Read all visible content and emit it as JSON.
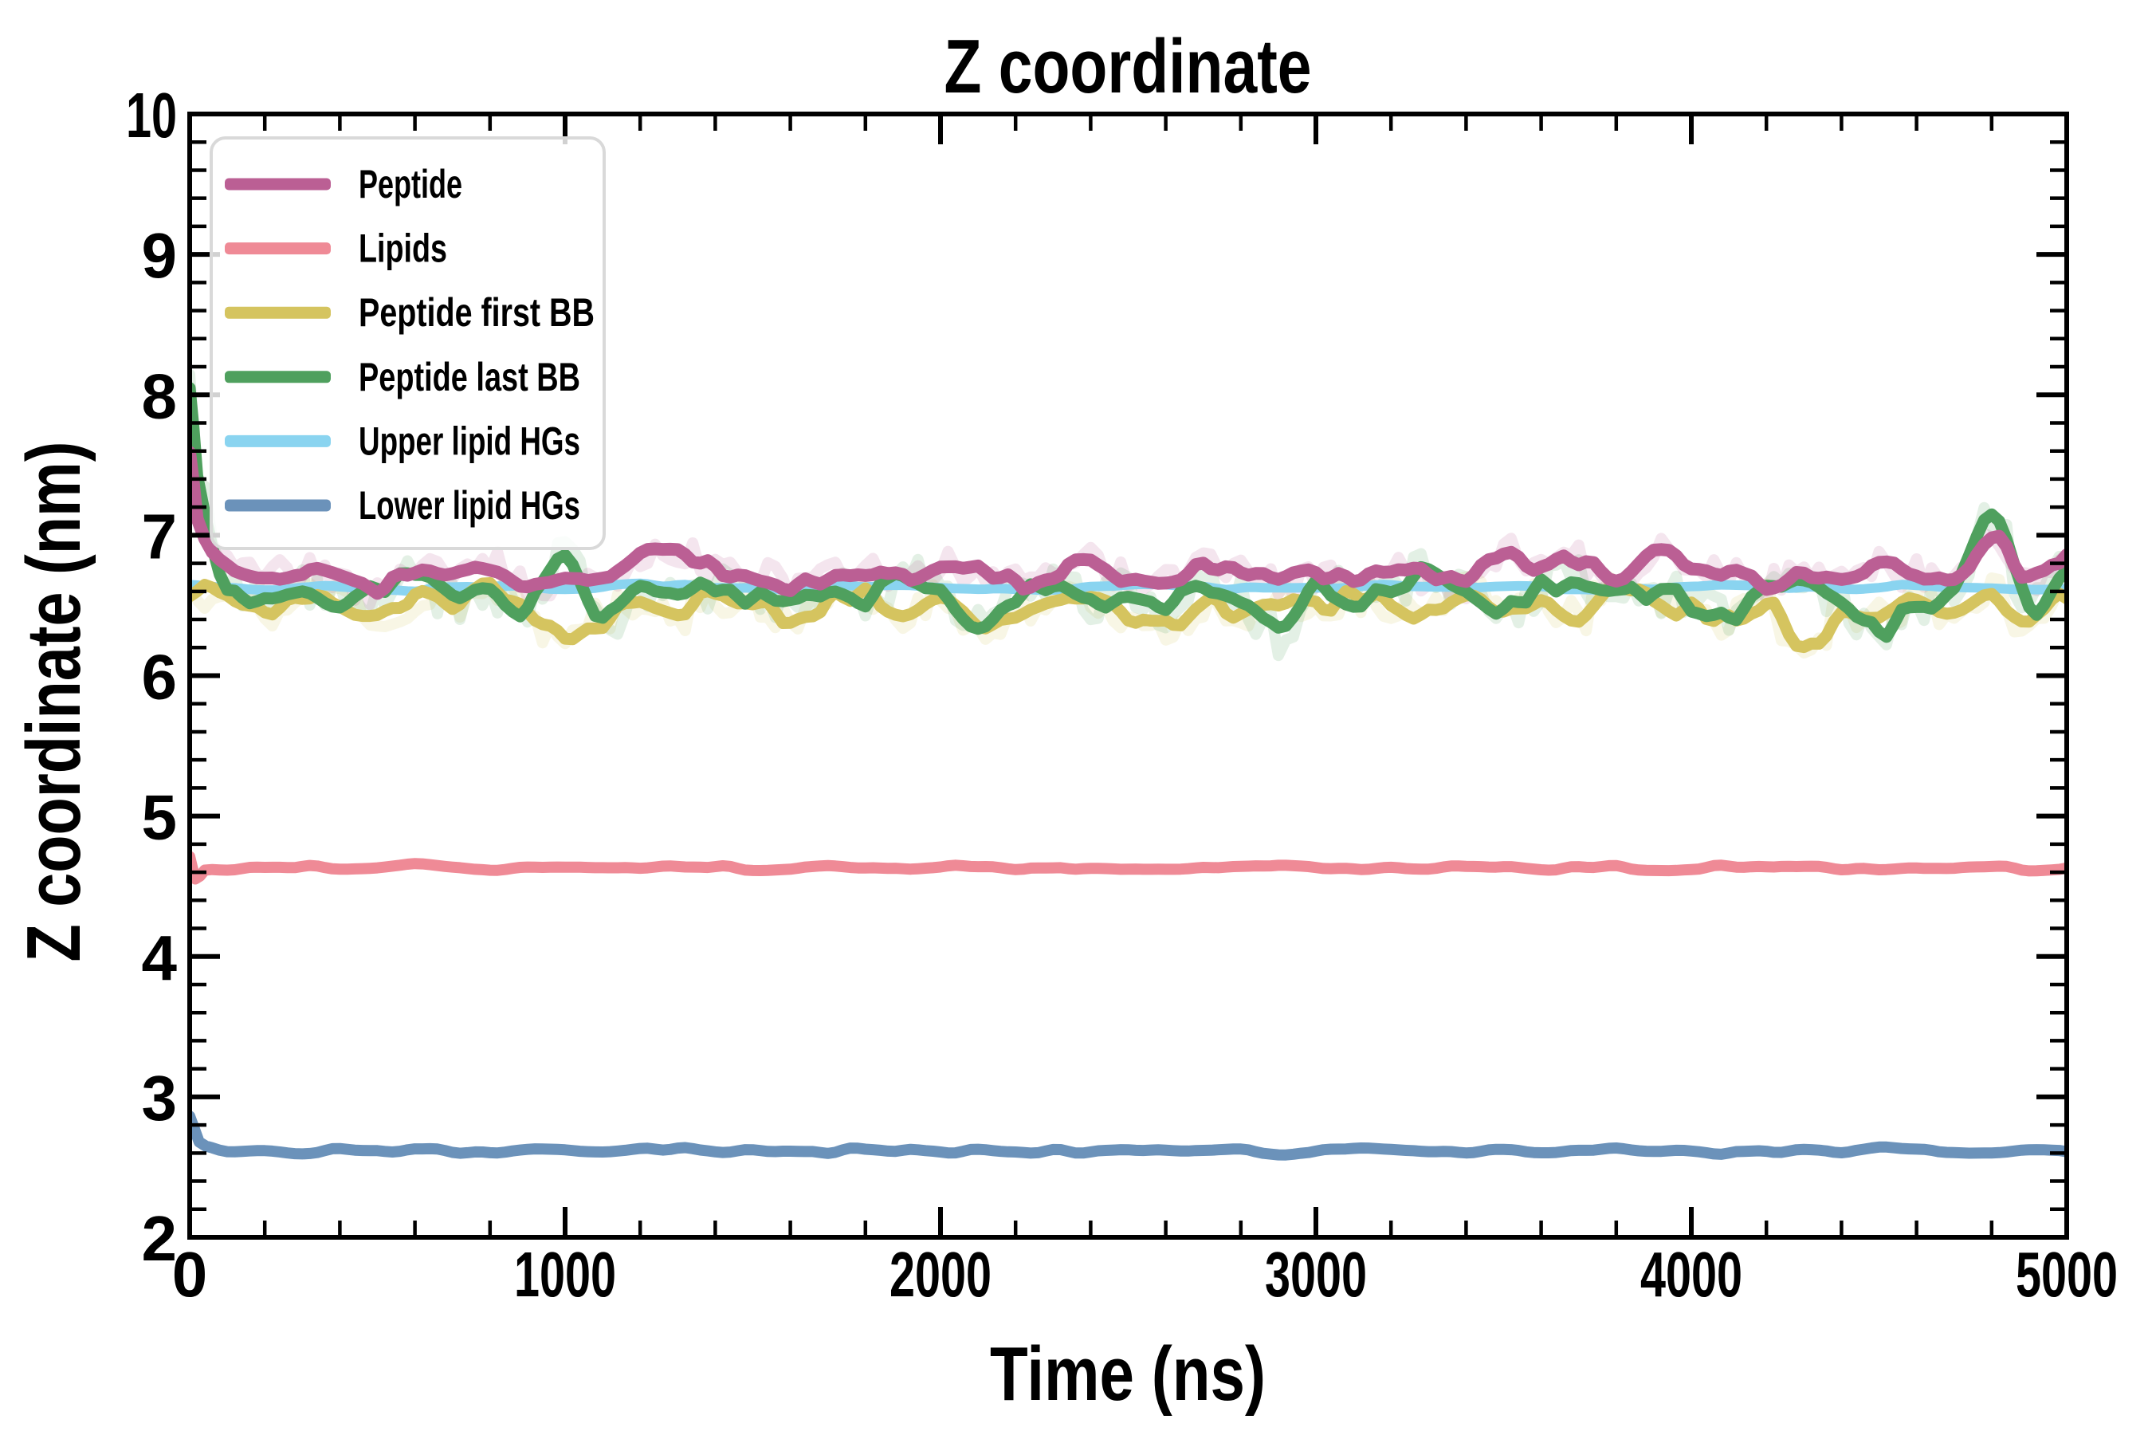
{
  "figure": {
    "background": "#ffffff",
    "title": "Z coordinate",
    "xlabel": "Time (ns)",
    "ylabel": "Z coordinate (nm)"
  },
  "legend": {
    "entries": [
      {
        "label": "Peptide",
        "color": "#bb5f94"
      },
      {
        "label": "Lipids",
        "color": "#ef8a96"
      },
      {
        "label": "Peptide first BB",
        "color": "#d5c45f"
      },
      {
        "label": "Peptide last BB",
        "color": "#4fa05e"
      },
      {
        "label": "Upper lipid HGs",
        "color": "#8ad4f0"
      },
      {
        "label": "Lower lipid HGs",
        "color": "#6b92ba"
      }
    ]
  },
  "chart_data": {
    "type": "line",
    "title": "Z coordinate",
    "xlabel": "Time (ns)",
    "ylabel": "Z coordinate (nm)",
    "xlim": [
      0,
      5000
    ],
    "ylim": [
      2,
      10
    ],
    "grid": false,
    "legend_position": "upper-left",
    "axis_color": "#000000",
    "ticks": {
      "x_major": [
        0,
        1000,
        2000,
        3000,
        4000,
        5000
      ],
      "x_major_labels": [
        "0",
        "1000",
        "2000",
        "3000",
        "4000",
        "5000"
      ],
      "x_minor_step": 200,
      "y_major": [
        2,
        3,
        4,
        5,
        6,
        7,
        8,
        9,
        10
      ],
      "y_major_labels": [
        "2",
        "3",
        "4",
        "5",
        "6",
        "7",
        "8",
        "9",
        "10"
      ],
      "y_minor_step": 0.2
    },
    "z_order": [
      "upper_hgs",
      "first_bb",
      "last_bb",
      "peptide",
      "lipids",
      "lower_hgs"
    ],
    "ghosts": [
      "first_bb",
      "last_bb",
      "peptide"
    ],
    "series": [
      {
        "id": "peptide",
        "name": "Peptide",
        "color": "#bb5f94",
        "width": 16,
        "jitter": {
          "amp": 0.055,
          "lambda": 42,
          "seed": 3
        },
        "x": [
          0,
          20,
          60,
          100,
          200,
          300,
          400,
          500,
          600,
          700,
          800,
          900,
          1000,
          1100,
          1200,
          1300,
          1400,
          1500,
          1600,
          1700,
          1800,
          1900,
          2000,
          2100,
          2200,
          2300,
          2400,
          2500,
          2600,
          2700,
          2800,
          2900,
          3000,
          3100,
          3200,
          3300,
          3400,
          3500,
          3600,
          3700,
          3800,
          3900,
          4000,
          4100,
          4200,
          4300,
          4400,
          4500,
          4600,
          4700,
          4800,
          4900,
          5000
        ],
        "y": [
          7.55,
          7.08,
          6.85,
          6.78,
          6.7,
          6.75,
          6.68,
          6.62,
          6.74,
          6.7,
          6.78,
          6.66,
          6.71,
          6.65,
          6.88,
          6.9,
          6.77,
          6.72,
          6.64,
          6.7,
          6.76,
          6.68,
          6.82,
          6.74,
          6.66,
          6.72,
          6.79,
          6.7,
          6.63,
          6.76,
          6.72,
          6.67,
          6.74,
          6.7,
          6.78,
          6.71,
          6.66,
          6.88,
          6.76,
          6.83,
          6.7,
          6.9,
          6.78,
          6.72,
          6.66,
          6.74,
          6.7,
          6.78,
          6.72,
          6.65,
          7.02,
          6.7,
          6.86
        ]
      },
      {
        "id": "lipids",
        "name": "Lipids",
        "color": "#ef8a96",
        "width": 14,
        "jitter": {
          "amp": 0.013,
          "lambda": 55,
          "seed": 11
        },
        "x": [
          0,
          15,
          40,
          100,
          200,
          300,
          400,
          500,
          600,
          700,
          800,
          900,
          1000,
          1100,
          1200,
          1300,
          1400,
          1500,
          1600,
          1700,
          1800,
          1900,
          2000,
          2100,
          2200,
          2300,
          2400,
          2500,
          2600,
          2700,
          2800,
          2900,
          3000,
          3100,
          3200,
          3300,
          3400,
          3500,
          3600,
          3700,
          3800,
          3900,
          4000,
          4100,
          4200,
          4300,
          4400,
          4500,
          4600,
          4700,
          4800,
          4900,
          5000
        ],
        "y": [
          4.72,
          4.56,
          4.62,
          4.62,
          4.63,
          4.64,
          4.62,
          4.63,
          4.65,
          4.63,
          4.62,
          4.64,
          4.63,
          4.62,
          4.63,
          4.65,
          4.64,
          4.62,
          4.63,
          4.64,
          4.62,
          4.63,
          4.64,
          4.65,
          4.63,
          4.62,
          4.64,
          4.63,
          4.62,
          4.63,
          4.65,
          4.64,
          4.63,
          4.62,
          4.64,
          4.63,
          4.65,
          4.64,
          4.62,
          4.63,
          4.64,
          4.62,
          4.63,
          4.64,
          4.63,
          4.65,
          4.63,
          4.62,
          4.64,
          4.63,
          4.64,
          4.62,
          4.63
        ]
      },
      {
        "id": "first_bb",
        "name": "Peptide first BB",
        "color": "#d5c45f",
        "width": 15,
        "jitter": {
          "amp": 0.065,
          "lambda": 44,
          "seed": 7
        },
        "x": [
          0,
          100,
          200,
          300,
          400,
          500,
          600,
          700,
          800,
          900,
          1000,
          1100,
          1200,
          1300,
          1400,
          1500,
          1600,
          1700,
          1800,
          1900,
          2000,
          2100,
          2200,
          2300,
          2400,
          2500,
          2600,
          2700,
          2800,
          2900,
          3000,
          3100,
          3200,
          3300,
          3400,
          3500,
          3600,
          3700,
          3800,
          3900,
          4000,
          4100,
          4200,
          4300,
          4400,
          4500,
          4600,
          4700,
          4800,
          4900,
          5000
        ],
        "y": [
          6.6,
          6.55,
          6.48,
          6.58,
          6.5,
          6.44,
          6.56,
          6.5,
          6.6,
          6.42,
          6.28,
          6.4,
          6.54,
          6.46,
          6.58,
          6.5,
          6.42,
          6.52,
          6.58,
          6.46,
          6.55,
          6.32,
          6.4,
          6.5,
          6.58,
          6.44,
          6.35,
          6.52,
          6.46,
          6.55,
          6.48,
          6.58,
          6.5,
          6.42,
          6.6,
          6.5,
          6.56,
          6.44,
          6.62,
          6.52,
          6.46,
          6.38,
          6.52,
          6.15,
          6.48,
          6.42,
          6.52,
          6.45,
          6.58,
          6.4,
          6.55
        ]
      },
      {
        "id": "last_bb",
        "name": "Peptide last BB",
        "color": "#4fa05e",
        "width": 15,
        "jitter": {
          "amp": 0.07,
          "lambda": 40,
          "seed": 5
        },
        "x": [
          0,
          20,
          60,
          100,
          200,
          300,
          400,
          500,
          600,
          700,
          800,
          900,
          1000,
          1100,
          1200,
          1300,
          1400,
          1500,
          1600,
          1700,
          1800,
          1900,
          2000,
          2100,
          2200,
          2300,
          2400,
          2500,
          2600,
          2700,
          2800,
          2900,
          3000,
          3100,
          3200,
          3300,
          3400,
          3500,
          3600,
          3700,
          3800,
          3900,
          4000,
          4100,
          4200,
          4300,
          4400,
          4500,
          4600,
          4700,
          4800,
          4900,
          5000
        ],
        "y": [
          8.07,
          7.45,
          6.95,
          6.62,
          6.55,
          6.65,
          6.5,
          6.6,
          6.68,
          6.55,
          6.62,
          6.48,
          6.85,
          6.4,
          6.6,
          6.52,
          6.64,
          6.55,
          6.47,
          6.62,
          6.55,
          6.68,
          6.58,
          6.35,
          6.55,
          6.65,
          6.52,
          6.58,
          6.5,
          6.66,
          6.58,
          6.3,
          6.62,
          6.55,
          6.65,
          6.72,
          6.58,
          6.5,
          6.62,
          6.68,
          6.55,
          6.6,
          6.52,
          6.44,
          6.58,
          6.65,
          6.55,
          6.32,
          6.5,
          6.58,
          7.15,
          6.48,
          6.75
        ]
      },
      {
        "id": "upper_hgs",
        "name": "Upper lipid HGs",
        "color": "#8ad4f0",
        "width": 12,
        "jitter": {
          "amp": 0.012,
          "lambda": 60,
          "seed": 13
        },
        "x": [
          0,
          200,
          400,
          600,
          800,
          1000,
          1200,
          1400,
          1600,
          1800,
          2000,
          2200,
          2400,
          2600,
          2800,
          3000,
          3200,
          3400,
          3600,
          3800,
          4000,
          4200,
          4400,
          4600,
          4800,
          5000
        ],
        "y": [
          6.64,
          6.62,
          6.63,
          6.61,
          6.64,
          6.62,
          6.65,
          6.63,
          6.62,
          6.64,
          6.63,
          6.61,
          6.63,
          6.65,
          6.62,
          6.63,
          6.64,
          6.62,
          6.63,
          6.61,
          6.64,
          6.63,
          6.62,
          6.64,
          6.63,
          6.62
        ]
      },
      {
        "id": "lower_hgs",
        "name": "Lower lipid HGs",
        "color": "#6b92ba",
        "width": 14,
        "jitter": {
          "amp": 0.014,
          "lambda": 55,
          "seed": 17
        },
        "x": [
          0,
          25,
          60,
          100,
          200,
          300,
          400,
          500,
          600,
          700,
          800,
          900,
          1000,
          1100,
          1200,
          1300,
          1400,
          1500,
          1600,
          1700,
          1800,
          1900,
          2000,
          2100,
          2200,
          2300,
          2400,
          2500,
          2600,
          2700,
          2800,
          2900,
          3000,
          3100,
          3200,
          3300,
          3400,
          3500,
          3600,
          3700,
          3800,
          3900,
          4000,
          4100,
          4200,
          4300,
          4400,
          4500,
          4600,
          4700,
          4800,
          4900,
          5000
        ],
        "y": [
          2.87,
          2.68,
          2.63,
          2.61,
          2.62,
          2.6,
          2.62,
          2.61,
          2.63,
          2.61,
          2.6,
          2.62,
          2.61,
          2.6,
          2.62,
          2.63,
          2.61,
          2.62,
          2.6,
          2.61,
          2.63,
          2.62,
          2.61,
          2.62,
          2.6,
          2.62,
          2.61,
          2.63,
          2.62,
          2.61,
          2.62,
          2.6,
          2.61,
          2.63,
          2.62,
          2.61,
          2.6,
          2.62,
          2.61,
          2.62,
          2.63,
          2.61,
          2.62,
          2.6,
          2.61,
          2.62,
          2.61,
          2.63,
          2.62,
          2.61,
          2.6,
          2.62,
          2.61
        ]
      }
    ]
  }
}
